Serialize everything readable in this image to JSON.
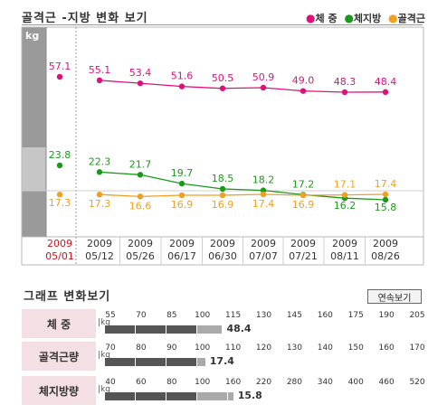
{
  "page": {
    "title": "골격근 -지방 변화 보기",
    "unit_label": "kg"
  },
  "legend": [
    {
      "label": "체  중",
      "color": "#e0107a"
    },
    {
      "label": "체지방",
      "color": "#1a9a1a"
    },
    {
      "label": "골격근",
      "color": "#f0a020"
    }
  ],
  "chart_data": [
    {
      "type": "line",
      "title": "골격근 -지방 변화 보기",
      "ylabel": "kg",
      "x": [
        "2009 05/01",
        "2009 05/12",
        "2009 05/26",
        "2009 06/17",
        "2009 06/30",
        "2009 07/07",
        "2009 07/21",
        "2009 08/11",
        "2009 08/26"
      ],
      "baseline_index": 0,
      "series": [
        {
          "name": "체  중",
          "color": "#e0107a",
          "values": [
            57.1,
            55.1,
            53.4,
            51.6,
            50.5,
            50.9,
            49.0,
            48.3,
            48.4
          ]
        },
        {
          "name": "체지방",
          "color": "#1a9a1a",
          "values": [
            23.8,
            22.3,
            21.7,
            19.7,
            18.5,
            18.2,
            17.2,
            16.2,
            15.8
          ]
        },
        {
          "name": "골격근",
          "color": "#f0a020",
          "values": [
            17.3,
            17.3,
            16.6,
            16.9,
            16.9,
            17.4,
            16.9,
            17.1,
            17.4
          ]
        }
      ],
      "legend_position": "top-right"
    },
    {
      "type": "bar",
      "title": "그래프 변화보기",
      "unit": "kg",
      "rows": [
        {
          "name": "체   중",
          "ticks": [
            55,
            70,
            85,
            100,
            115,
            130,
            145,
            160,
            175,
            190,
            205
          ],
          "value": 48.4,
          "value_text": "48.4"
        },
        {
          "name": "골격근량",
          "ticks": [
            70,
            80,
            90,
            100,
            110,
            120,
            130,
            140,
            150,
            160,
            170
          ],
          "value": 17.4,
          "value_text": "17.4"
        },
        {
          "name": "체지방량",
          "ticks": [
            40,
            60,
            80,
            100,
            160,
            220,
            280,
            340,
            400,
            460,
            520
          ],
          "value": 15.8,
          "value_text": "15.8"
        }
      ]
    }
  ],
  "panel": {
    "title": "그래프 변화보기",
    "toggle_label": "연속보기"
  }
}
